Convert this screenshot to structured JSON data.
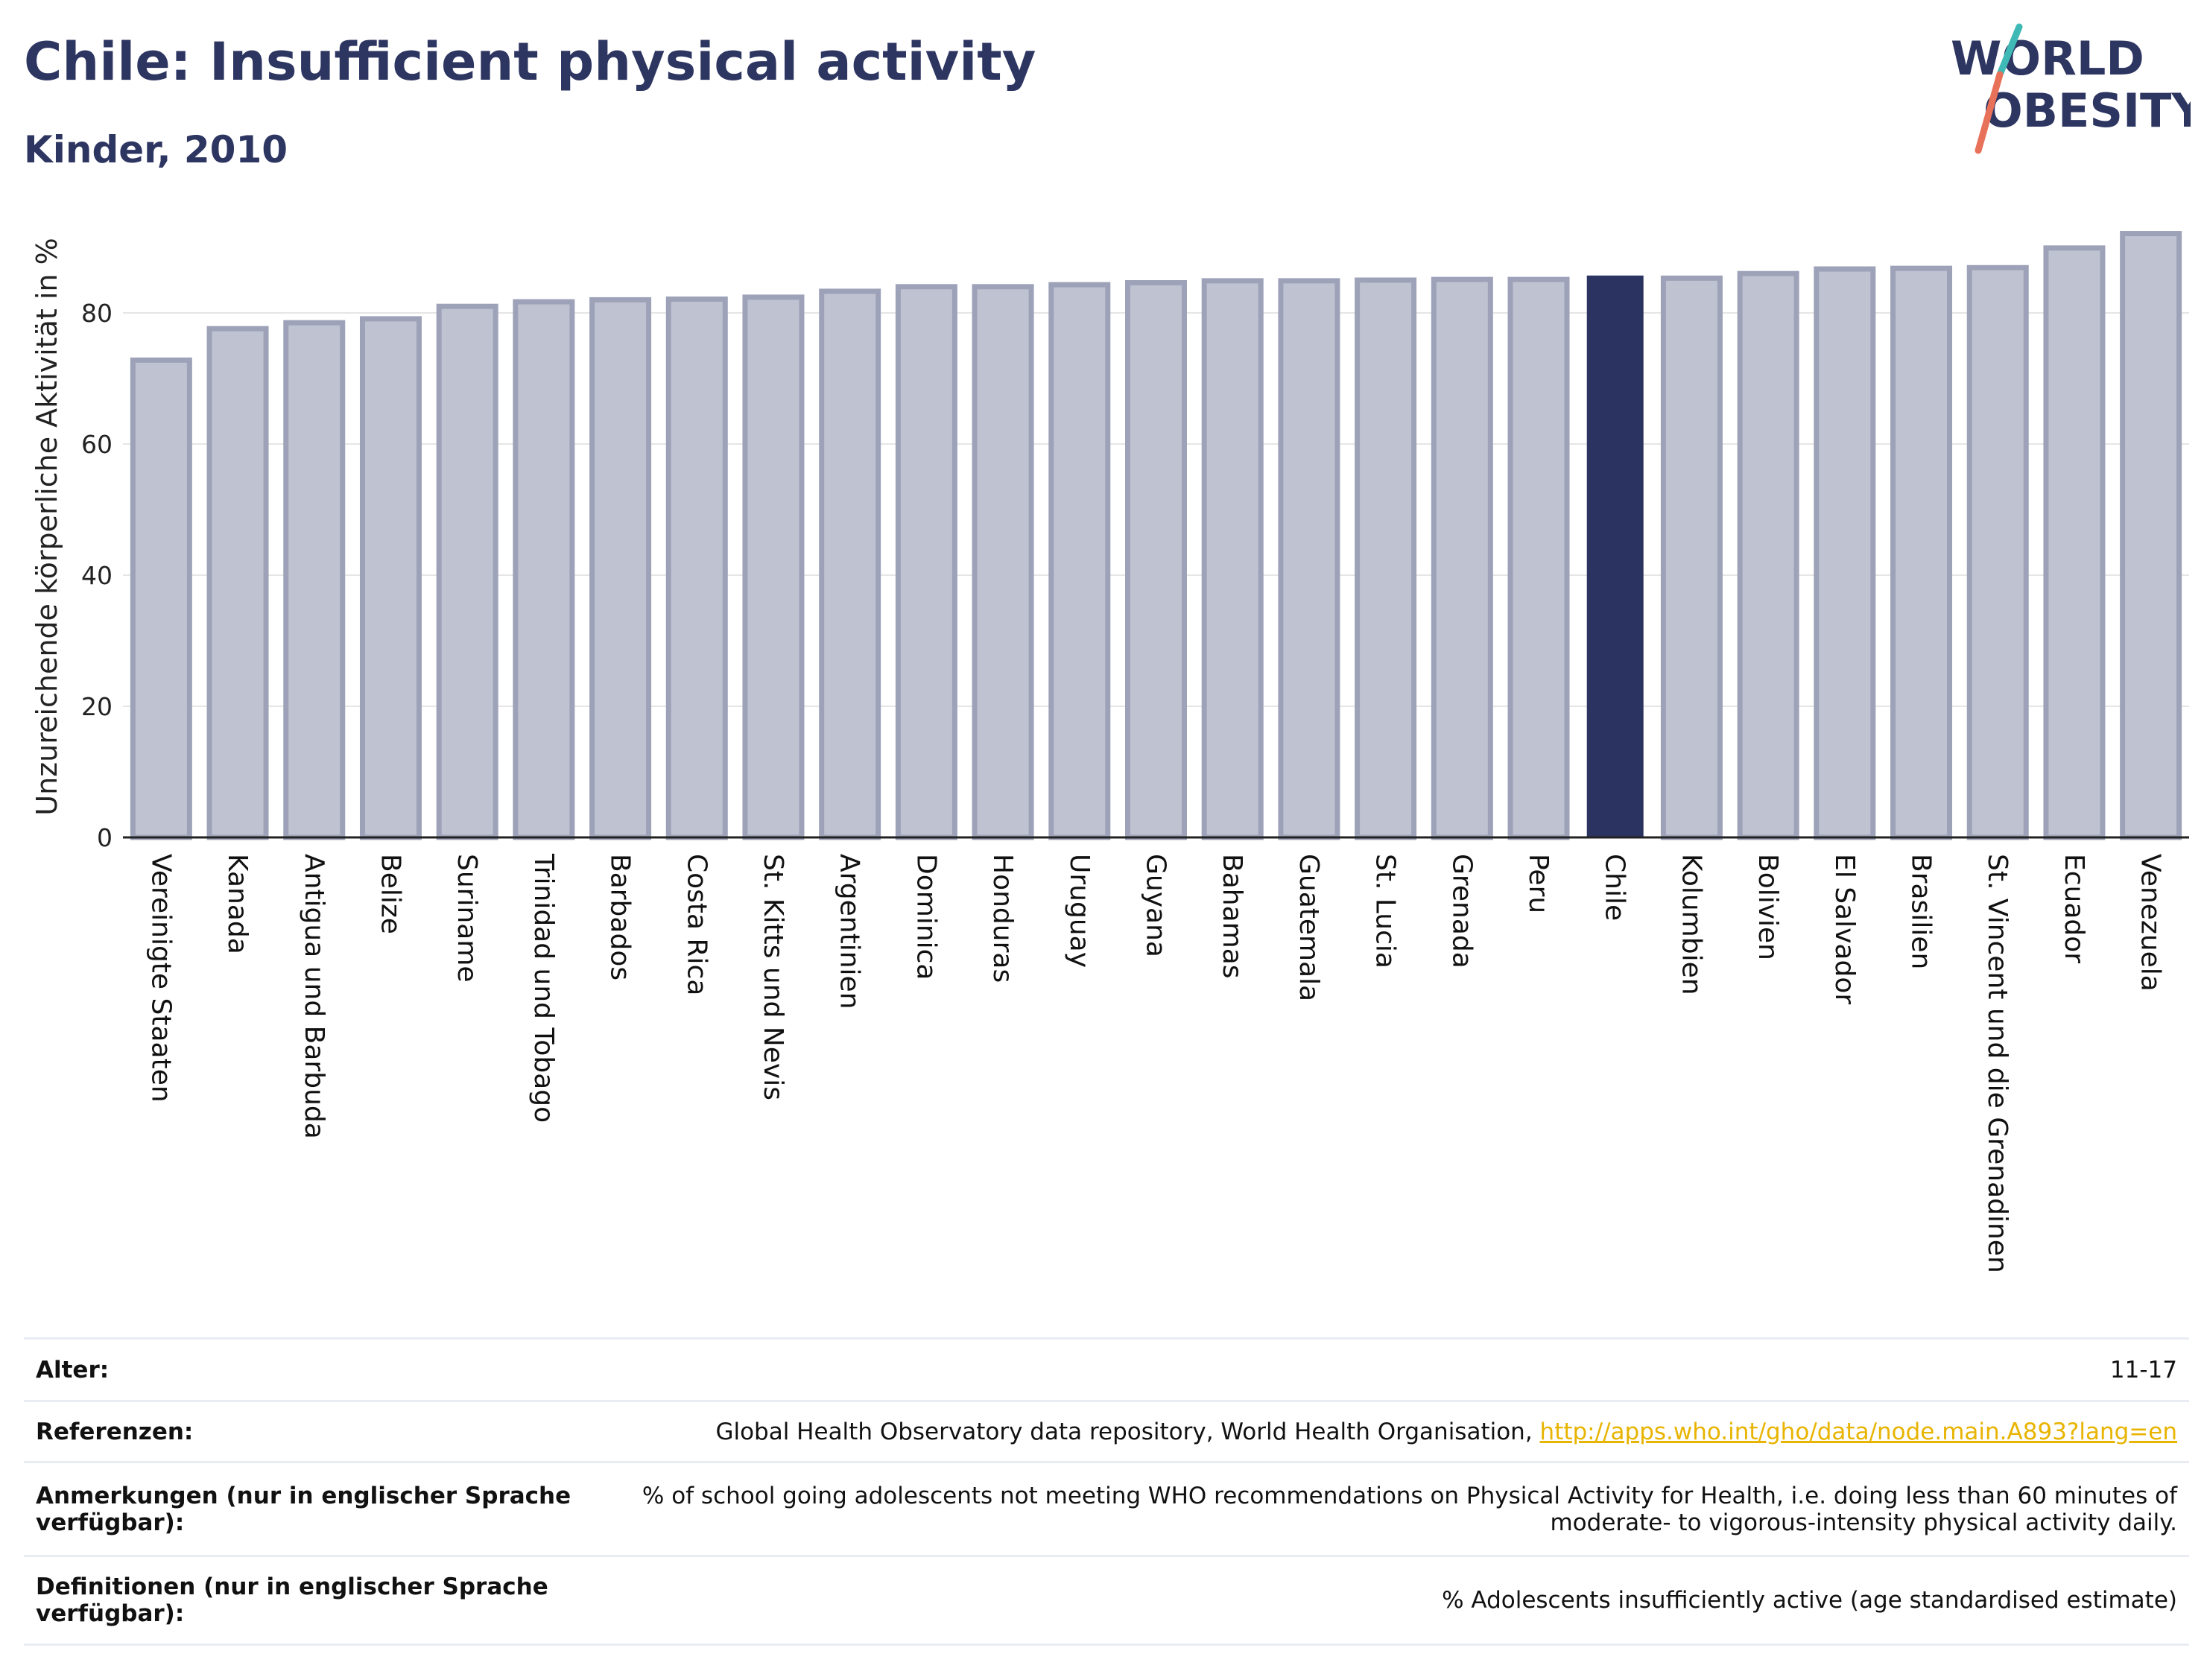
{
  "header": {
    "title": "Chile: Insufficient physical activity",
    "subtitle": "Kinder, 2010"
  },
  "logo": {
    "line1": "WORLD",
    "line2": "OBESITY"
  },
  "chart_data": {
    "type": "bar",
    "ylabel": "Unzureichende körperliche Aktivität in %",
    "xlabel": "",
    "ylim": [
      0,
      95
    ],
    "yticks": [
      0,
      20,
      40,
      60,
      80
    ],
    "grid": true,
    "highlight": "Chile",
    "categories": [
      "Vereinigte Staaten",
      "Kanada",
      "Antigua und Barbuda",
      "Belize",
      "Suriname",
      "Trinidad und Tobago",
      "Barbados",
      "Costa Rica",
      "St. Kitts und Nevis",
      "Argentinien",
      "Dominica",
      "Honduras",
      "Uruguay",
      "Guyana",
      "Bahamas",
      "Guatemala",
      "St. Lucia",
      "Grenada",
      "Peru",
      "Chile",
      "Kolumbien",
      "Bolivien",
      "El Salvador",
      "Brasilien",
      "St. Vincent und die Grenadinen",
      "Ecuador",
      "Venezuela"
    ],
    "values": [
      72.8,
      77.6,
      78.5,
      79.1,
      81.0,
      81.7,
      82.0,
      82.1,
      82.4,
      83.3,
      84.0,
      84.0,
      84.3,
      84.6,
      84.9,
      84.9,
      85.0,
      85.1,
      85.1,
      85.7,
      85.3,
      86.0,
      86.7,
      86.8,
      86.9,
      89.9,
      92.1
    ],
    "colors": {
      "bar": "#bfc2d1",
      "bar_edge": "#9ea2b8",
      "highlight": "#2b3460",
      "grid": "#e6e6e6",
      "axis": "#222222"
    }
  },
  "info_table": {
    "rows": [
      {
        "label": "Alter:",
        "value": "11-17"
      },
      {
        "label": "Referenzen:",
        "value": "Global Health Observatory data repository, World Health Organisation, ",
        "link": "http://apps.who.int/gho/data/node.main.A893?lang=en"
      },
      {
        "label": "Anmerkungen (nur in englischer Sprache verfügbar):",
        "value": "% of school going adolescents not meeting WHO recommendations on Physical Activity for Health, i.e. doing less than 60 minutes of moderate- to vigorous-intensity physical activity daily."
      },
      {
        "label": "Definitionen (nur in englischer Sprache verfügbar):",
        "value": "% Adolescents insufficiently active (age standardised estimate)"
      }
    ]
  }
}
